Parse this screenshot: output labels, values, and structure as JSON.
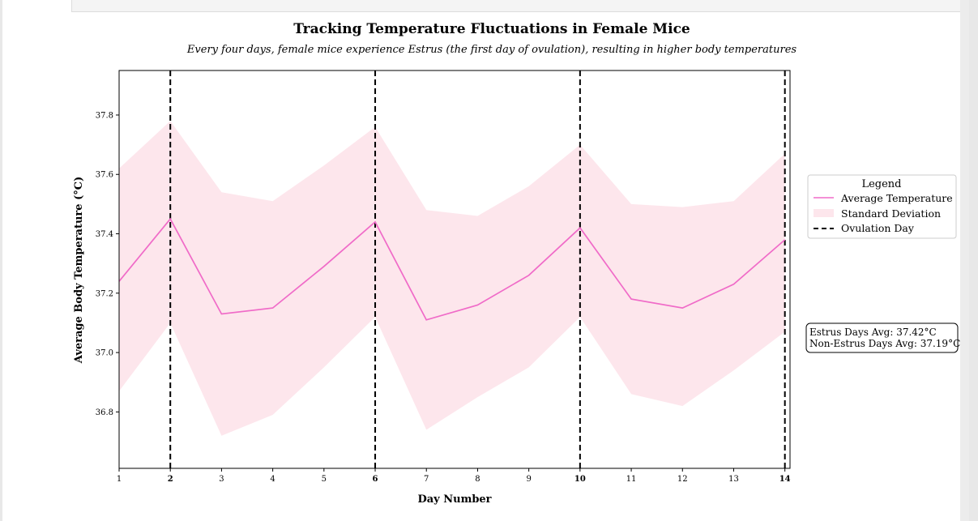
{
  "chart_data": {
    "type": "line",
    "title": "Tracking Temperature Fluctuations in Female Mice",
    "subtitle": "Every four days, female mice experience Estrus (the first day of ovulation), resulting in higher body temperatures",
    "xlabel": "Day Number",
    "ylabel": "Average Body Temperature (°C)",
    "x": [
      1,
      2,
      3,
      4,
      5,
      6,
      7,
      8,
      9,
      10,
      11,
      12,
      13,
      14
    ],
    "xlim": [
      1,
      14.1
    ],
    "ylim": [
      36.61,
      37.95
    ],
    "yticks": [
      36.8,
      37.0,
      37.2,
      37.4,
      37.6,
      37.8
    ],
    "ytick_labels": [
      "36.8",
      "37.0",
      "37.2",
      "37.4",
      "37.6",
      "37.8"
    ],
    "xtick_labels": [
      "1",
      "2",
      "3",
      "4",
      "5",
      "6",
      "7",
      "8",
      "9",
      "10",
      "11",
      "12",
      "13",
      "14"
    ],
    "bold_xticks": [
      2,
      6,
      10,
      14
    ],
    "series": [
      {
        "name": "Average Temperature",
        "type": "line",
        "color": "#f06bc8",
        "values": [
          37.24,
          37.45,
          37.13,
          37.15,
          37.29,
          37.44,
          37.11,
          37.16,
          37.26,
          37.42,
          37.18,
          37.15,
          37.23,
          37.38
        ]
      },
      {
        "name": "Standard Deviation",
        "type": "band",
        "color": "#fde6ec",
        "upper": [
          37.62,
          37.78,
          37.54,
          37.51,
          37.63,
          37.76,
          37.48,
          37.46,
          37.56,
          37.7,
          37.5,
          37.49,
          37.51,
          37.67
        ],
        "lower": [
          36.87,
          37.1,
          36.72,
          36.79,
          36.95,
          37.12,
          36.74,
          36.85,
          36.95,
          37.12,
          36.86,
          36.82,
          36.94,
          37.07
        ]
      }
    ],
    "ovulation_days": {
      "name": "Ovulation Day",
      "x": [
        2,
        6,
        10,
        14
      ],
      "color": "#000000",
      "style": "dashed"
    },
    "legend": {
      "title": "Legend",
      "placement": "right, outside plot, center",
      "entries": [
        "Average Temperature",
        "Standard Deviation",
        "Ovulation Day"
      ]
    },
    "annotation": {
      "line1": "Estrus Days Avg: 37.42°C",
      "line2": "Non-Estrus Days Avg: 37.19°C"
    },
    "grid": false
  }
}
